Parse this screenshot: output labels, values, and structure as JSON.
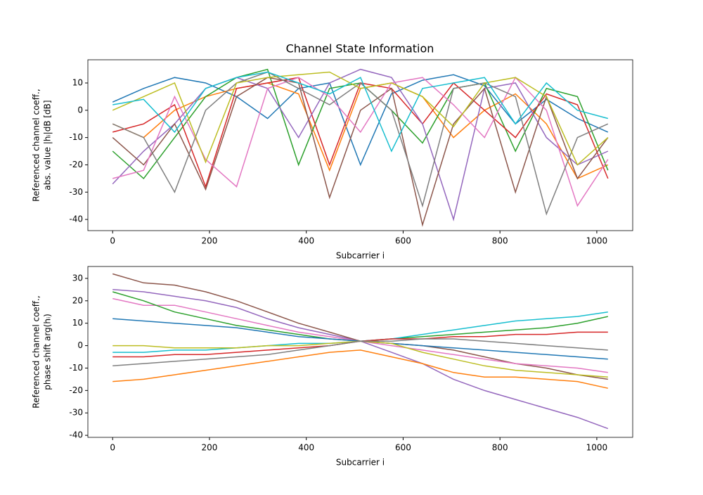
{
  "chart_data": [
    {
      "type": "line",
      "title": "Channel State Information",
      "xlabel": "Subcarrier i",
      "ylabel": [
        "Referenced channel coeff.,",
        "abs. value |hᵢ|dB [dB]"
      ],
      "x": [
        0,
        64,
        128,
        192,
        256,
        320,
        384,
        448,
        512,
        576,
        640,
        704,
        768,
        832,
        896,
        960,
        1023
      ],
      "xlim": [
        -51.15,
        1074.15
      ],
      "xticks": [
        0,
        200,
        400,
        600,
        800,
        1000
      ],
      "ylim": [
        -44.1,
        18.5
      ],
      "yticks": [
        -40,
        -30,
        -20,
        -10,
        0,
        10
      ],
      "series": [
        {
          "color": "#1f77b4",
          "values": [
            3,
            8,
            12,
            10,
            5,
            -3,
            8,
            10,
            -20,
            6,
            11,
            13,
            9,
            -5,
            4,
            -3,
            -8
          ]
        },
        {
          "color": "#ff7f0e",
          "values": [
            -5,
            -10,
            0,
            5,
            8,
            10,
            6,
            -22,
            8,
            10,
            5,
            -10,
            0,
            6,
            -5,
            -25,
            -20
          ]
        },
        {
          "color": "#2ca02c",
          "values": [
            -15,
            -25,
            -10,
            5,
            12,
            15,
            -20,
            8,
            10,
            0,
            -12,
            8,
            10,
            -15,
            8,
            5,
            -22
          ]
        },
        {
          "color": "#d62728",
          "values": [
            -8,
            -5,
            2,
            -28,
            8,
            10,
            12,
            -20,
            10,
            8,
            -5,
            10,
            0,
            -10,
            6,
            2,
            -25
          ]
        },
        {
          "color": "#9467bd",
          "values": [
            -27,
            -15,
            -5,
            8,
            12,
            8,
            -10,
            10,
            15,
            12,
            -5,
            -40,
            8,
            10,
            -10,
            -20,
            -15
          ]
        },
        {
          "color": "#8c564b",
          "values": [
            -10,
            -20,
            -5,
            -29,
            5,
            12,
            10,
            -32,
            0,
            8,
            -42,
            -5,
            8,
            -30,
            5,
            -25,
            -10
          ]
        },
        {
          "color": "#e377c2",
          "values": [
            -25,
            -22,
            5,
            -18,
            -28,
            8,
            12,
            5,
            -8,
            10,
            12,
            2,
            -10,
            12,
            0,
            -35,
            -18
          ]
        },
        {
          "color": "#7f7f7f",
          "values": [
            -5,
            -10,
            -30,
            0,
            10,
            14,
            8,
            2,
            10,
            0,
            -35,
            8,
            10,
            5,
            -38,
            -10,
            -5
          ]
        },
        {
          "color": "#bcbd22",
          "values": [
            0,
            5,
            10,
            -19,
            10,
            12,
            13,
            14,
            8,
            10,
            5,
            -6,
            10,
            12,
            5,
            -20,
            -10
          ]
        },
        {
          "color": "#17becf",
          "values": [
            2,
            4,
            -8,
            8,
            12,
            14,
            10,
            6,
            12,
            -15,
            8,
            10,
            12,
            -5,
            10,
            0,
            -3
          ]
        }
      ]
    },
    {
      "type": "line",
      "xlabel": "Subcarrier i",
      "ylabel": [
        "Referenced channel coeff.,",
        "phase shift arg(hᵢ)"
      ],
      "x": [
        0,
        64,
        128,
        192,
        256,
        320,
        384,
        448,
        512,
        576,
        640,
        704,
        768,
        832,
        896,
        960,
        1023
      ],
      "xlim": [
        -51.15,
        1074.15
      ],
      "xticks": [
        0,
        200,
        400,
        600,
        800,
        1000
      ],
      "ylim": [
        -40.9,
        35.3
      ],
      "yticks": [
        -40,
        -30,
        -20,
        -10,
        0,
        10,
        20,
        30
      ],
      "series": [
        {
          "color": "#9467bd",
          "values": [
            25,
            24,
            22,
            20,
            17,
            12,
            8,
            5,
            2,
            -3,
            -8,
            -15,
            -20,
            -24,
            -28,
            -32,
            -37
          ]
        },
        {
          "color": "#8c564b",
          "values": [
            32,
            28,
            27,
            24,
            20,
            15,
            10,
            6,
            2,
            1,
            0,
            -2,
            -5,
            -8,
            -10,
            -13,
            -15
          ]
        },
        {
          "color": "#e377c2",
          "values": [
            21,
            18,
            18,
            15,
            12,
            9,
            6,
            4,
            2,
            0,
            -2,
            -4,
            -6,
            -8,
            -9,
            -10,
            -12
          ]
        },
        {
          "color": "#2ca02c",
          "values": [
            24,
            20,
            15,
            12,
            9,
            7,
            5,
            3,
            2,
            3,
            4,
            5,
            6,
            7,
            8,
            10,
            13
          ]
        },
        {
          "color": "#17becf",
          "values": [
            -3,
            -3,
            -2,
            -2,
            -1,
            0,
            1,
            1,
            2,
            3,
            5,
            7,
            9,
            11,
            12,
            13,
            15
          ]
        },
        {
          "color": "#ff7f0e",
          "values": [
            -16,
            -15,
            -13,
            -11,
            -9,
            -7,
            -5,
            -3,
            -2,
            -5,
            -8,
            -12,
            -14,
            -14,
            -15,
            -16,
            -19
          ]
        },
        {
          "color": "#1f77b4",
          "values": [
            12,
            11,
            10,
            9,
            8,
            6,
            4,
            3,
            2,
            1,
            0,
            -1,
            -2,
            -3,
            -4,
            -5,
            -6
          ]
        },
        {
          "color": "#d62728",
          "values": [
            -5,
            -5,
            -4,
            -4,
            -3,
            -2,
            -1,
            0,
            2,
            3,
            3,
            4,
            4,
            5,
            5,
            6,
            6
          ]
        },
        {
          "color": "#bcbd22",
          "values": [
            0,
            0,
            -1,
            -1,
            -1,
            0,
            0,
            1,
            2,
            1,
            -3,
            -6,
            -9,
            -11,
            -12,
            -13,
            -14
          ]
        },
        {
          "color": "#7f7f7f",
          "values": [
            -9,
            -8,
            -7,
            -6,
            -5,
            -4,
            -2,
            0,
            2,
            2,
            3,
            3,
            2,
            1,
            0,
            -1,
            -2
          ]
        }
      ]
    }
  ]
}
